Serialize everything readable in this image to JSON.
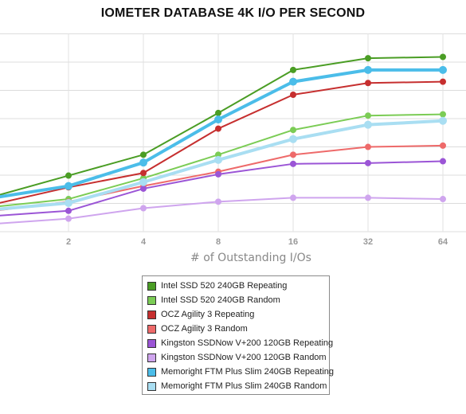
{
  "chart_data": {
    "type": "line",
    "title": "IOMETER DATABASE 4K I/O PER SECOND",
    "xlabel": "# of Outstanding I/Os",
    "ylabel": "",
    "x": [
      1,
      2,
      4,
      8,
      16,
      32,
      64
    ],
    "x_tick_labels": [
      "2",
      "4",
      "8",
      "16",
      "32",
      "64"
    ],
    "x_scale": "log2",
    "ylim": [
      0,
      7.6
    ],
    "y_tick_labels_visible": false,
    "grid": true,
    "legend_position": "bottom-center",
    "series": [
      {
        "name": "Intel SSD 520 240GB Repeating",
        "color": "#4a9d24",
        "values": [
          1.35,
          2.15,
          2.95,
          4.55,
          6.2,
          6.65,
          6.7
        ]
      },
      {
        "name": "Intel SSD 520 240GB Random",
        "color": "#7bcc55",
        "values": [
          0.95,
          1.25,
          2.05,
          2.95,
          3.9,
          4.45,
          4.5
        ]
      },
      {
        "name": "OCZ Agility 3 Repeating",
        "color": "#c62f2f",
        "values": [
          1.05,
          1.7,
          2.25,
          3.95,
          5.25,
          5.7,
          5.75
        ]
      },
      {
        "name": "OCZ Agility 3 Random",
        "color": "#ee6a6a",
        "values": [
          0.8,
          1.15,
          1.75,
          2.3,
          2.95,
          3.25,
          3.3
        ]
      },
      {
        "name": "Kingston SSDNow V+200 120GB Repeating",
        "color": "#9b55d6",
        "values": [
          0.6,
          0.8,
          1.65,
          2.2,
          2.6,
          2.63,
          2.7
        ]
      },
      {
        "name": "Kingston SSDNow V+200 120GB Random",
        "color": "#cfa5ee",
        "values": [
          0.3,
          0.5,
          0.9,
          1.15,
          1.3,
          1.3,
          1.25
        ]
      },
      {
        "name": "Memoright FTM Plus Slim 240GB Repeating",
        "color": "#4bbde9",
        "values": [
          1.3,
          1.75,
          2.65,
          4.3,
          5.75,
          6.2,
          6.2
        ]
      },
      {
        "name": "Memoright FTM Plus Slim 240GB Random",
        "color": "#a9def2",
        "values": [
          0.85,
          1.1,
          1.9,
          2.75,
          3.55,
          4.1,
          4.25
        ]
      }
    ]
  }
}
